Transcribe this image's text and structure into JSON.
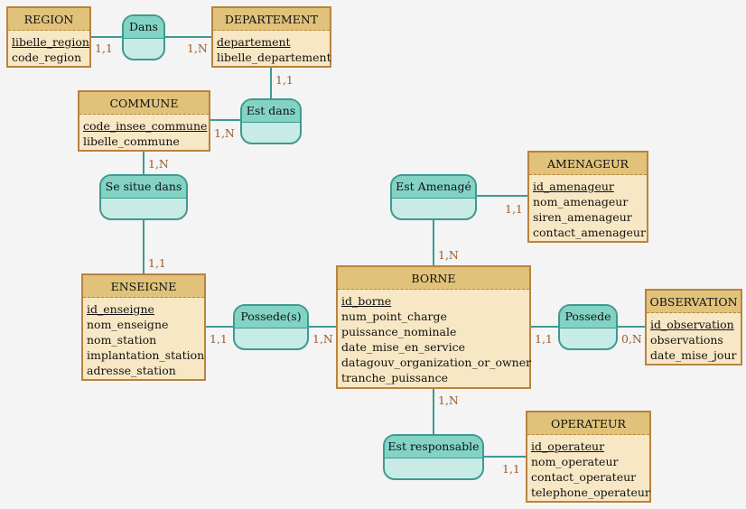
{
  "entities": [
    {
      "name": "REGION",
      "keys": [
        "libelle_region"
      ],
      "attrs": [
        "code_region"
      ]
    },
    {
      "name": "DEPARTEMENT",
      "keys": [
        "departement"
      ],
      "attrs": [
        "libelle_departement"
      ]
    },
    {
      "name": "COMMUNE",
      "keys": [
        "code_insee_commune"
      ],
      "attrs": [
        "libelle_commune"
      ]
    },
    {
      "name": "AMENAGEUR",
      "keys": [
        "id_amenageur"
      ],
      "attrs": [
        "nom_amenageur",
        "siren_amenageur",
        "contact_amenageur"
      ]
    },
    {
      "name": "BORNE",
      "keys": [
        "id_borne"
      ],
      "attrs": [
        "num_point_charge",
        "puissance_nominale",
        "date_mise_en_service",
        "datagouv_organization_or_owner",
        "tranche_puissance"
      ]
    },
    {
      "name": "ENSEIGNE",
      "keys": [
        "id_enseigne"
      ],
      "attrs": [
        "nom_enseigne",
        "nom_station",
        "implantation_station",
        "adresse_station"
      ]
    },
    {
      "name": "OBSERVATION",
      "keys": [
        "id_observation"
      ],
      "attrs": [
        "observations",
        "date_mise_jour"
      ]
    },
    {
      "name": "OPERATEUR",
      "keys": [
        "id_operateur"
      ],
      "attrs": [
        "nom_operateur",
        "contact_operateur",
        "telephone_operateur"
      ]
    }
  ],
  "associations": [
    "Dans",
    "Est dans",
    "Se situe dans",
    "Est Amenagé",
    "Possede(s)",
    "Possede",
    "Est responsable"
  ],
  "cardinalities": [
    "1,1",
    "1,N",
    "1,1",
    "1,N",
    "1,N",
    "1,1",
    "1,1",
    "1,N",
    "1,1",
    "1,N",
    "1,1",
    "0,N",
    "1,N",
    "1,1"
  ]
}
